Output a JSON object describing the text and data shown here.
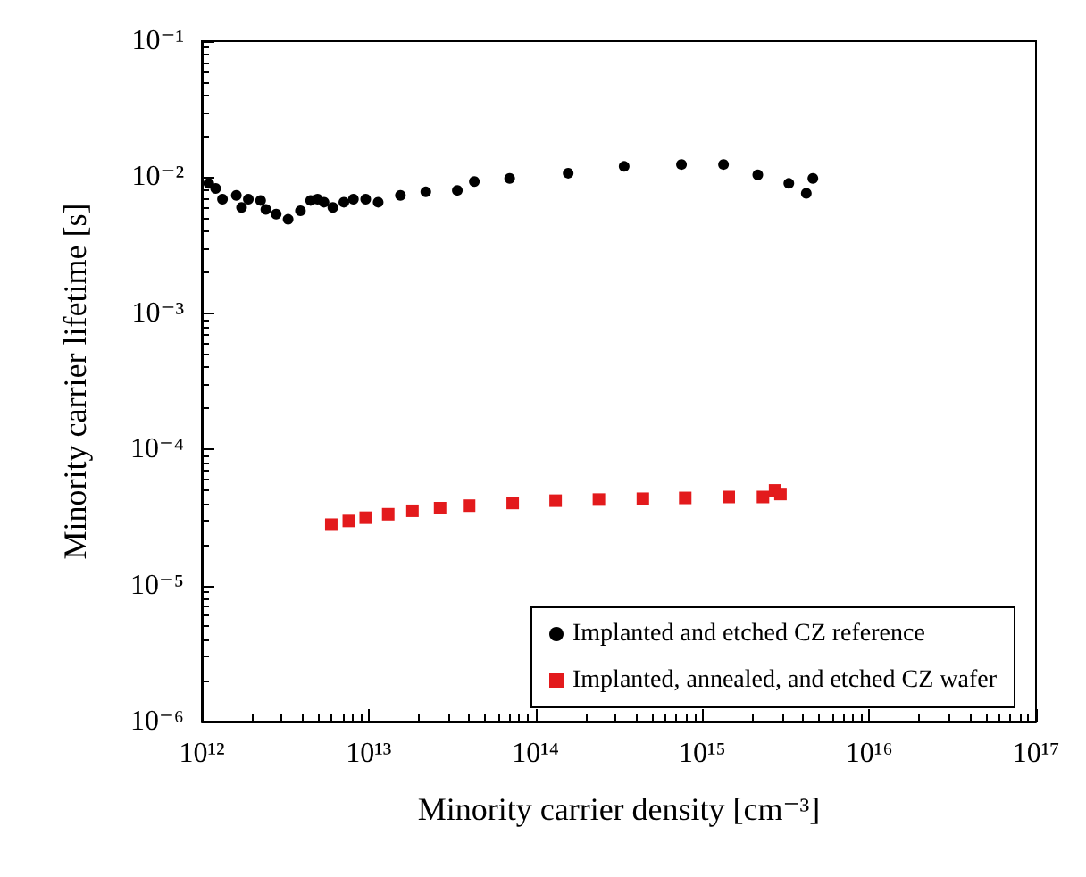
{
  "chart_data": {
    "type": "scatter",
    "xlabel": "Minority carrier density [cm⁻³]",
    "ylabel": "Minority carrier lifetime [s]",
    "log": "xy",
    "xlim": [
      1000000000000.0,
      1e+17
    ],
    "ylim": [
      1e-06,
      0.1
    ],
    "xticks": [
      {
        "value": 1000000000000.0,
        "label": "10¹²"
      },
      {
        "value": 10000000000000.0,
        "label": "10¹³"
      },
      {
        "value": 100000000000000.0,
        "label": "10¹⁴"
      },
      {
        "value": 1000000000000000.0,
        "label": "10¹⁵"
      },
      {
        "value": 1e+16,
        "label": "10¹⁶"
      },
      {
        "value": 1e+17,
        "label": "10¹⁷"
      }
    ],
    "yticks": [
      {
        "value": 1e-06,
        "label": "10⁻⁶"
      },
      {
        "value": 1e-05,
        "label": "10⁻⁵"
      },
      {
        "value": 0.0001,
        "label": "10⁻⁴"
      },
      {
        "value": 0.001,
        "label": "10⁻³"
      },
      {
        "value": 0.01,
        "label": "10⁻²"
      },
      {
        "value": 0.1,
        "label": "10⁻¹"
      }
    ],
    "grid": false,
    "legend": "bottom right",
    "series": [
      {
        "name": "Implanted and etched CZ reference",
        "color": "#000000",
        "marker": "circle",
        "x": [
          1100000000000.0,
          1210000000000.0,
          1330000000000.0,
          1610000000000.0,
          1730000000000.0,
          1900000000000.0,
          2250000000000.0,
          2420000000000.0,
          2790000000000.0,
          3290000000000.0,
          3900000000000.0,
          4490000000000.0,
          4940000000000.0,
          5400000000000.0,
          6100000000000.0,
          7100000000000.0,
          8100000000000.0,
          9600000000000.0,
          11400000000000.0,
          15500000000000.0,
          22000000000000.0,
          34000000000000.0,
          43000000000000.0,
          70000000000000.0,
          157000000000000.0,
          340000000000000.0,
          750000000000000.0,
          1340000000000000.0,
          2150000000000000.0,
          3300000000000000.0,
          4200000000000000.0,
          4600000000000000.0
        ],
        "values": [
          0.009,
          0.00826,
          0.0069,
          0.00735,
          0.006,
          0.0069,
          0.00675,
          0.0058,
          0.00535,
          0.0049,
          0.00566,
          0.00675,
          0.0069,
          0.00655,
          0.006,
          0.00655,
          0.0069,
          0.0069,
          0.00655,
          0.00736,
          0.0078,
          0.008,
          0.0093,
          0.0098,
          0.0107,
          0.012,
          0.0124,
          0.0124,
          0.0104,
          0.009,
          0.0076,
          0.0098
        ]
      },
      {
        "name": "Implanted, annealed, and etched CZ wafer",
        "color": "#e31a1c",
        "marker": "square",
        "x": [
          5970000000000.0,
          7600000000000.0,
          9600000000000.0,
          13100000000000.0,
          18300000000000.0,
          26800000000000.0,
          40000000000000.0,
          73000000000000.0,
          132000000000000.0,
          240000000000000.0,
          440000000000000.0,
          790000000000000.0,
          1440000000000000.0,
          2310000000000000.0,
          2730000000000000.0,
          2940000000000000.0
        ],
        "values": [
          2.8e-05,
          2.98e-05,
          3.15e-05,
          3.34e-05,
          3.54e-05,
          3.7e-05,
          3.86e-05,
          4.04e-05,
          4.2e-05,
          4.28e-05,
          4.34e-05,
          4.4e-05,
          4.47e-05,
          4.47e-05,
          5e-05,
          4.7e-05
        ]
      }
    ]
  }
}
